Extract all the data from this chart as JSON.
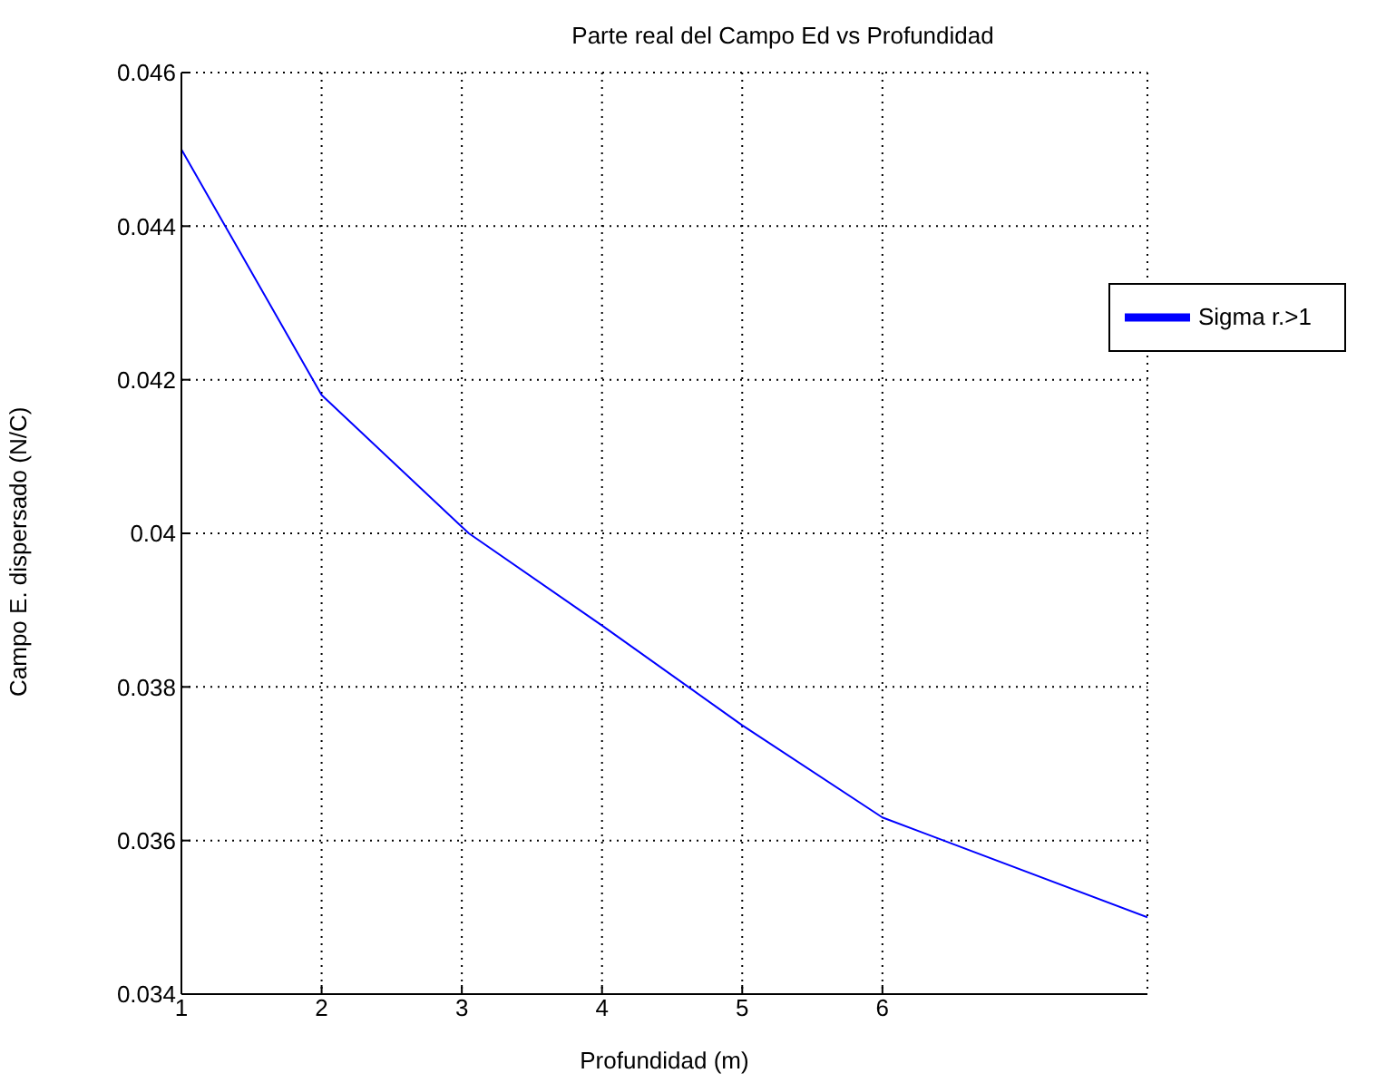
{
  "chart_data": {
    "type": "line",
    "title": "Parte real del Campo Ed vs Profundidad",
    "xlabel": "Profundidad (m)",
    "ylabel": "Campo E. dispersado (N/C)",
    "series": [
      {
        "name": "Sigma r.>1",
        "color": "#0000ff",
        "x": [
          1,
          2,
          3.05,
          4,
          5,
          6,
          7.89
        ],
        "values": [
          0.045,
          0.0418,
          0.04,
          0.0388,
          0.0375,
          0.0363,
          0.035
        ]
      }
    ],
    "xlim": [
      1,
      7.89
    ],
    "xticks": [
      1,
      2,
      3,
      4,
      5,
      6
    ],
    "ylim": [
      0.034,
      0.046
    ],
    "yticks": [
      0.034,
      0.036,
      0.038,
      0.04,
      0.042,
      0.044,
      0.046
    ],
    "grid": true,
    "legend": "top right",
    "line_style": "solid",
    "marker": "none"
  }
}
